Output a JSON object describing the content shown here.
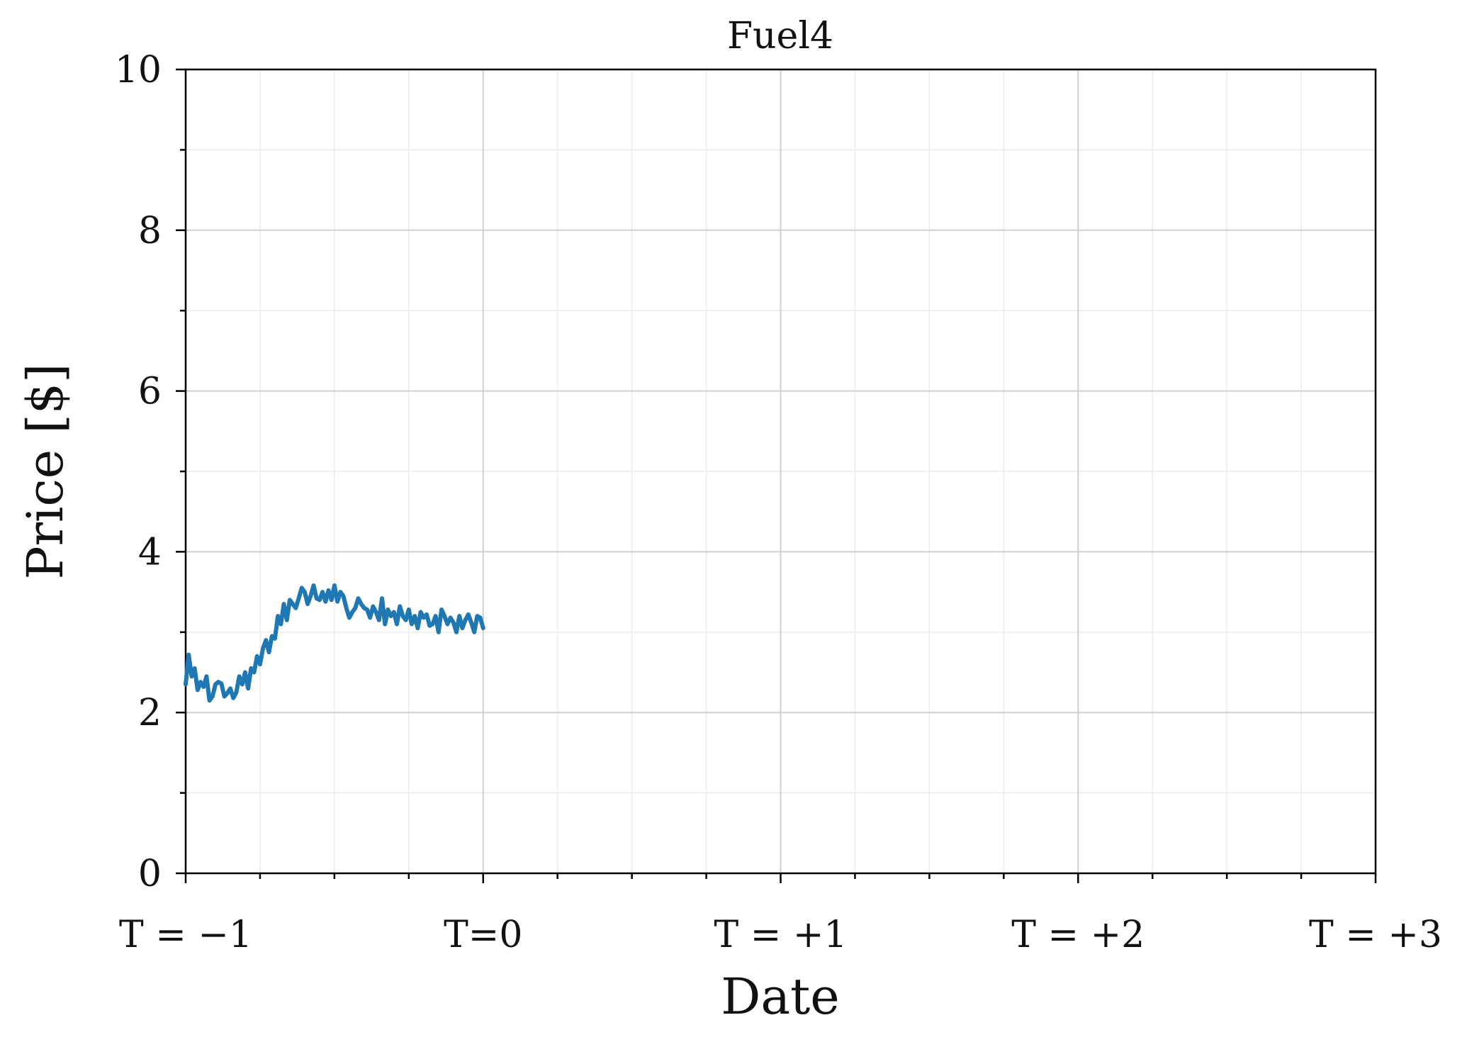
{
  "chart_data": {
    "type": "line",
    "title": "Fuel4",
    "xlabel": "Date",
    "ylabel": "Price [$]",
    "xlim": [
      -1,
      3
    ],
    "ylim": [
      0,
      10
    ],
    "x_ticks": [
      {
        "value": -1,
        "label": "T = −1"
      },
      {
        "value": 0,
        "label": "T=0"
      },
      {
        "value": 1,
        "label": "T = +1"
      },
      {
        "value": 2,
        "label": "T = +2"
      },
      {
        "value": 3,
        "label": "T = +3"
      }
    ],
    "x_minor_step": 0.25,
    "y_ticks": [
      {
        "value": 0,
        "label": "0"
      },
      {
        "value": 2,
        "label": "2"
      },
      {
        "value": 4,
        "label": "4"
      },
      {
        "value": 6,
        "label": "6"
      },
      {
        "value": 8,
        "label": "8"
      },
      {
        "value": 10,
        "label": "10"
      }
    ],
    "y_minor_step": 1,
    "grid": true,
    "series": [
      {
        "color": "#1f77b4",
        "x": [
          -1.0,
          -0.99,
          -0.98,
          -0.97,
          -0.96,
          -0.95,
          -0.94,
          -0.93,
          -0.92,
          -0.91,
          -0.9,
          -0.89,
          -0.88,
          -0.87,
          -0.86,
          -0.85,
          -0.84,
          -0.83,
          -0.82,
          -0.81,
          -0.8,
          -0.79,
          -0.78,
          -0.77,
          -0.76,
          -0.75,
          -0.74,
          -0.73,
          -0.72,
          -0.71,
          -0.7,
          -0.69,
          -0.68,
          -0.67,
          -0.66,
          -0.65,
          -0.64,
          -0.63,
          -0.62,
          -0.61,
          -0.6,
          -0.59,
          -0.58,
          -0.57,
          -0.56,
          -0.55,
          -0.54,
          -0.53,
          -0.52,
          -0.51,
          -0.5,
          -0.49,
          -0.48,
          -0.47,
          -0.46,
          -0.45,
          -0.44,
          -0.43,
          -0.42,
          -0.41,
          -0.4,
          -0.39,
          -0.38,
          -0.37,
          -0.36,
          -0.35,
          -0.34,
          -0.33,
          -0.32,
          -0.31,
          -0.3,
          -0.29,
          -0.28,
          -0.27,
          -0.26,
          -0.25,
          -0.24,
          -0.23,
          -0.22,
          -0.21,
          -0.2,
          -0.19,
          -0.18,
          -0.17,
          -0.16,
          -0.15,
          -0.14,
          -0.13,
          -0.12,
          -0.11,
          -0.1,
          -0.09,
          -0.08,
          -0.07,
          -0.06,
          -0.05,
          -0.04,
          -0.03,
          -0.02,
          -0.01,
          0.0
        ],
        "y": [
          2.35,
          2.72,
          2.45,
          2.55,
          2.28,
          2.38,
          2.32,
          2.45,
          2.15,
          2.2,
          2.35,
          2.38,
          2.36,
          2.2,
          2.24,
          2.3,
          2.18,
          2.25,
          2.45,
          2.35,
          2.5,
          2.3,
          2.55,
          2.5,
          2.7,
          2.6,
          2.8,
          2.9,
          2.75,
          2.95,
          2.92,
          3.2,
          3.1,
          3.35,
          3.15,
          3.4,
          3.35,
          3.3,
          3.42,
          3.55,
          3.5,
          3.35,
          3.45,
          3.58,
          3.42,
          3.4,
          3.5,
          3.38,
          3.52,
          3.4,
          3.58,
          3.38,
          3.5,
          3.45,
          3.3,
          3.18,
          3.25,
          3.3,
          3.42,
          3.35,
          3.3,
          3.28,
          3.18,
          3.32,
          3.25,
          3.15,
          3.42,
          3.1,
          3.28,
          3.2,
          3.25,
          3.1,
          3.32,
          3.2,
          3.15,
          3.28,
          3.1,
          3.2,
          3.05,
          3.25,
          3.18,
          3.22,
          3.08,
          3.1,
          3.2,
          3.0,
          3.28,
          3.2,
          3.1,
          3.18,
          3.12,
          3.0,
          3.2,
          3.05,
          3.15,
          3.22,
          3.12,
          3.0,
          3.2,
          3.18,
          3.05
        ]
      }
    ]
  }
}
